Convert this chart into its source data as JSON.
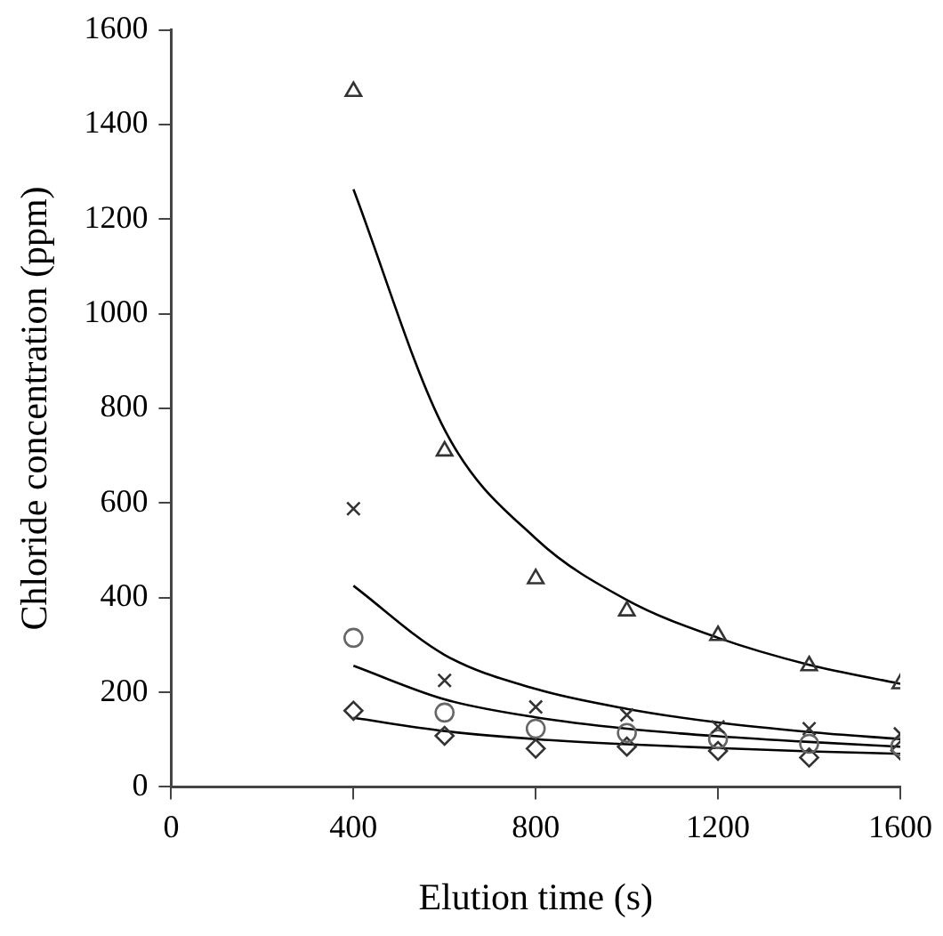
{
  "chart_data": {
    "type": "scatter",
    "xlabel": "Elution time (s)",
    "ylabel": "Chloride concentration (ppm)",
    "x": [
      400,
      600,
      800,
      1000,
      1200,
      1400,
      1600
    ],
    "series": [
      {
        "marker": "triangle",
        "color": "#333333",
        "values": [
          1470,
          710,
          440,
          372,
          320,
          256,
          218
        ]
      },
      {
        "marker": "cross",
        "color": "#333333",
        "values": [
          588,
          225,
          169,
          152,
          127,
          123,
          112
        ]
      },
      {
        "marker": "circle",
        "color": "#666666",
        "values": [
          315,
          157,
          123,
          114,
          101,
          91,
          86
        ]
      },
      {
        "marker": "diamond",
        "color": "#333333",
        "values": [
          161,
          108,
          81,
          85,
          76,
          62,
          77
        ]
      },
      {
        "type": "line",
        "marker": "none",
        "color": "#000000",
        "values": [
          1263,
          755,
          525,
          395,
          315,
          258,
          218
        ]
      },
      {
        "type": "line",
        "marker": "none",
        "color": "#000000",
        "values": [
          425,
          279,
          207,
          165,
          136,
          116,
          101
        ]
      },
      {
        "type": "line",
        "marker": "none",
        "color": "#000000",
        "values": [
          256,
          185,
          147,
          123,
          107,
          95,
          85
        ]
      },
      {
        "type": "line",
        "marker": "none",
        "color": "#000000",
        "values": [
          146,
          118,
          101,
          90,
          82,
          75,
          70
        ]
      }
    ],
    "xlim": [
      0,
      1600
    ],
    "xticks": [
      0,
      400,
      800,
      1200,
      1600
    ],
    "ylim": [
      0,
      1600
    ],
    "yticks": [
      0,
      200,
      400,
      600,
      800,
      1000,
      1200,
      1400,
      1600
    ],
    "grid": false,
    "legend": false
  }
}
